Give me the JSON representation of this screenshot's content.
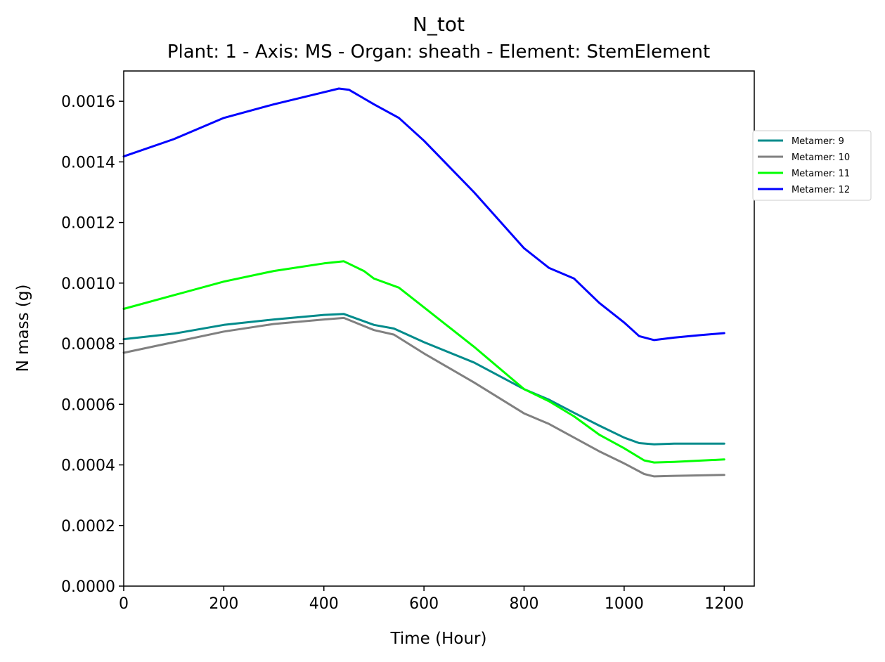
{
  "chart_data": {
    "type": "line",
    "title": "N_tot",
    "subtitle": "Plant: 1 - Axis: MS - Organ: sheath - Element: StemElement",
    "xlabel": "Time (Hour)",
    "ylabel": "N mass (g)",
    "xlim": [
      0,
      1260
    ],
    "ylim": [
      0,
      0.0017
    ],
    "x_ticks": [
      "0",
      "200",
      "400",
      "600",
      "800",
      "1000",
      "1200"
    ],
    "y_ticks": [
      "0.0000",
      "0.0002",
      "0.0004",
      "0.0006",
      "0.0008",
      "0.0010",
      "0.0012",
      "0.0014",
      "0.0016"
    ],
    "grid": false,
    "legend_position": "outside right",
    "series": [
      {
        "name": "Metamer: 9",
        "color": "#008b8b",
        "points": [
          [
            0,
            0.000815
          ],
          [
            100,
            0.000833
          ],
          [
            200,
            0.000862
          ],
          [
            300,
            0.00088
          ],
          [
            400,
            0.000895
          ],
          [
            440,
            0.000898
          ],
          [
            500,
            0.000862
          ],
          [
            540,
            0.00085
          ],
          [
            600,
            0.000805
          ],
          [
            700,
            0.000738
          ],
          [
            800,
            0.00065
          ],
          [
            850,
            0.000615
          ],
          [
            900,
            0.000572
          ],
          [
            950,
            0.00053
          ],
          [
            1000,
            0.00049
          ],
          [
            1030,
            0.000472
          ],
          [
            1060,
            0.000468
          ],
          [
            1100,
            0.00047
          ],
          [
            1200,
            0.00047
          ]
        ]
      },
      {
        "name": "Metamer: 10",
        "color": "#808080",
        "points": [
          [
            0,
            0.00077
          ],
          [
            100,
            0.000805
          ],
          [
            200,
            0.00084
          ],
          [
            300,
            0.000865
          ],
          [
            400,
            0.00088
          ],
          [
            440,
            0.000885
          ],
          [
            500,
            0.000845
          ],
          [
            540,
            0.00083
          ],
          [
            600,
            0.000768
          ],
          [
            700,
            0.000672
          ],
          [
            800,
            0.00057
          ],
          [
            850,
            0.000535
          ],
          [
            900,
            0.00049
          ],
          [
            950,
            0.000445
          ],
          [
            1000,
            0.000405
          ],
          [
            1040,
            0.00037
          ],
          [
            1060,
            0.000362
          ],
          [
            1100,
            0.000364
          ],
          [
            1200,
            0.000367
          ]
        ]
      },
      {
        "name": "Metamer: 11",
        "color": "#00ff00",
        "points": [
          [
            0,
            0.000915
          ],
          [
            100,
            0.00096
          ],
          [
            200,
            0.001005
          ],
          [
            300,
            0.00104
          ],
          [
            400,
            0.001065
          ],
          [
            440,
            0.001072
          ],
          [
            480,
            0.00104
          ],
          [
            500,
            0.001015
          ],
          [
            550,
            0.000985
          ],
          [
            600,
            0.00092
          ],
          [
            700,
            0.00079
          ],
          [
            800,
            0.00065
          ],
          [
            850,
            0.00061
          ],
          [
            900,
            0.00056
          ],
          [
            950,
            0.0005
          ],
          [
            1000,
            0.000455
          ],
          [
            1040,
            0.000415
          ],
          [
            1060,
            0.000408
          ],
          [
            1100,
            0.00041
          ],
          [
            1200,
            0.000418
          ]
        ]
      },
      {
        "name": "Metamer: 12",
        "color": "#0000ff",
        "points": [
          [
            0,
            0.001418
          ],
          [
            100,
            0.001475
          ],
          [
            200,
            0.001545
          ],
          [
            300,
            0.00159
          ],
          [
            400,
            0.00163
          ],
          [
            430,
            0.001642
          ],
          [
            450,
            0.001638
          ],
          [
            500,
            0.00159
          ],
          [
            550,
            0.001545
          ],
          [
            600,
            0.00147
          ],
          [
            700,
            0.0013
          ],
          [
            800,
            0.001115
          ],
          [
            850,
            0.00105
          ],
          [
            900,
            0.001015
          ],
          [
            950,
            0.000935
          ],
          [
            1000,
            0.00087
          ],
          [
            1030,
            0.000825
          ],
          [
            1060,
            0.000812
          ],
          [
            1100,
            0.00082
          ],
          [
            1150,
            0.000828
          ],
          [
            1200,
            0.000835
          ]
        ]
      }
    ]
  }
}
